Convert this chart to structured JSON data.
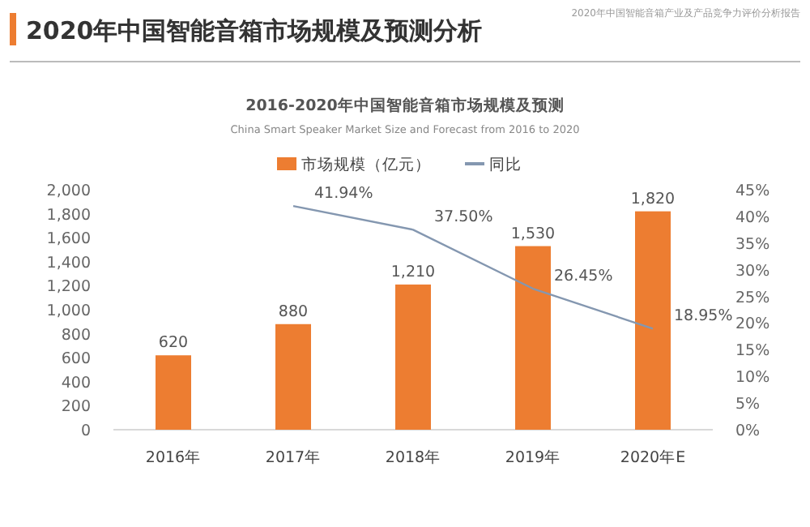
{
  "chart_data": {
    "type": "bar",
    "title": "2020年中国智能音箱市场规模及预测分析",
    "subtitle": "2016-2020年中国智能音箱市场规模及预测",
    "annotations": [
      "China Smart Speaker Market Size and Forecast from 2016 to 2020",
      "2020年中国智能音箱产业及产品竞争力评价分析报告"
    ],
    "categories": [
      "2016年",
      "2017年",
      "2018年",
      "2019年",
      "2020年E"
    ],
    "series": [
      {
        "name": "市场规模（亿元）",
        "color": "#ed7d31",
        "values": [
          620,
          880,
          1210,
          1530,
          1820
        ],
        "value_labels": [
          "620",
          "880",
          "1,210",
          "1,530",
          "1,820"
        ]
      },
      {
        "name": "同比",
        "type": "line",
        "axis": "y2",
        "color": "#8497b0",
        "values": [
          null,
          41.94,
          37.5,
          26.45,
          18.95
        ],
        "value_labels": [
          null,
          "41.94%",
          "37.50%",
          "26.45%",
          "18.95%"
        ]
      }
    ],
    "ylim": [
      0,
      2000
    ],
    "yticks": [
      0,
      200,
      400,
      600,
      800,
      {
        "value": 1000,
        "label": "1,000"
      },
      {
        "value": 1200,
        "label": "1,200"
      },
      {
        "value": 1400,
        "label": "1,400"
      },
      {
        "value": 1600,
        "label": "1,600"
      },
      {
        "value": 1800,
        "label": "1,800"
      },
      {
        "value": 2000,
        "label": "2,000"
      }
    ],
    "y2lim": [
      0,
      45
    ],
    "y2ticks": [
      {
        "value": 0,
        "label": "0%"
      },
      {
        "value": 5,
        "label": "5%"
      },
      {
        "value": 10,
        "label": "10%"
      },
      {
        "value": 15,
        "label": "15%"
      },
      {
        "value": 20,
        "label": "20%"
      },
      {
        "value": 25,
        "label": "25%"
      },
      {
        "value": 30,
        "label": "30%"
      },
      {
        "value": 35,
        "label": "35%"
      },
      {
        "value": 40,
        "label": "40%"
      },
      {
        "value": 45,
        "label": "45%"
      }
    ],
    "legend": "top",
    "grid": false
  }
}
